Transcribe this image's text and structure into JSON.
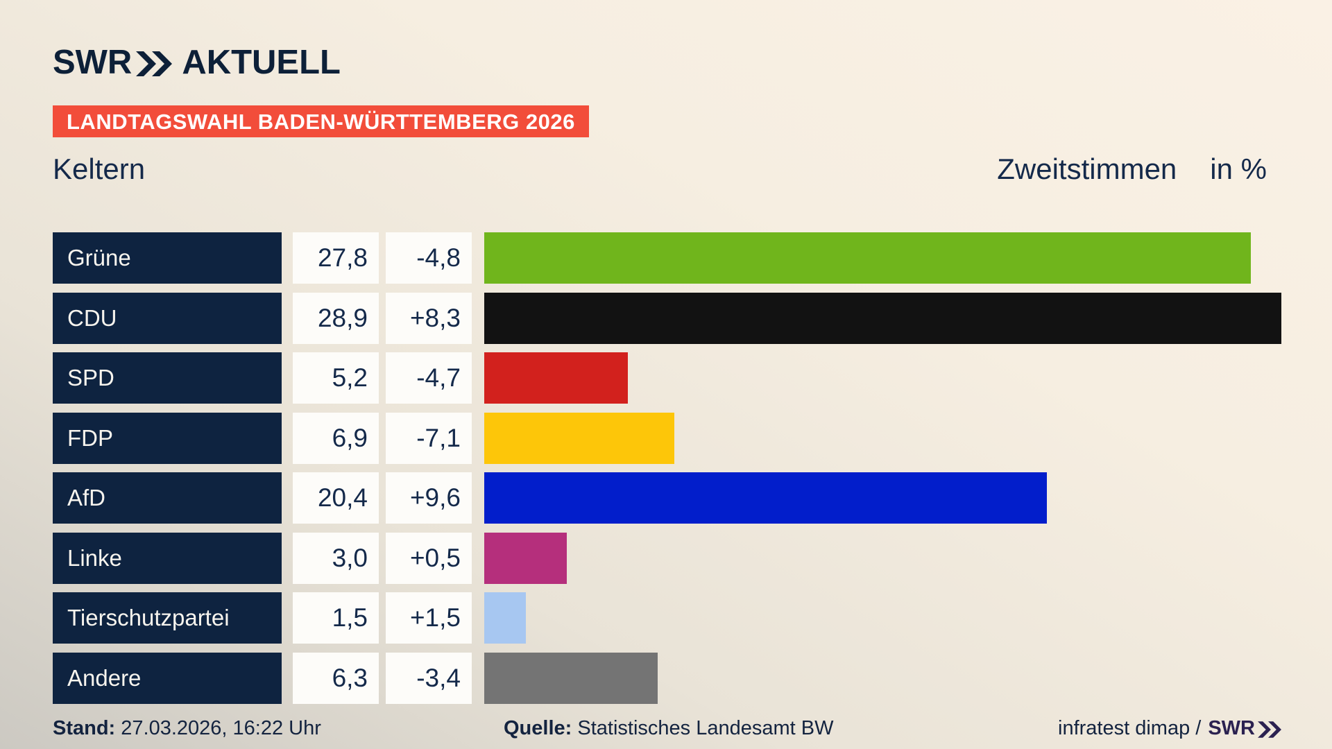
{
  "header": {
    "logo": {
      "swr": "SWR",
      "aktuell": "AKTUELL"
    },
    "banner": "LANDTAGSWAHL BADEN-WÜRTTEMBERG 2026"
  },
  "chart_data": {
    "type": "bar",
    "orientation": "horizontal",
    "title_left": "Keltern",
    "title_right": "Zweitstimmen",
    "unit": "in %",
    "value_columns": [
      "percent",
      "change_vs_previous"
    ],
    "axis_max_percent": 28.9,
    "parties": [
      {
        "name": "Grüne",
        "value": 27.8,
        "value_label": "27,8",
        "change_label": "-4,8",
        "color": "#70b51c"
      },
      {
        "name": "CDU",
        "value": 28.9,
        "value_label": "28,9",
        "change_label": "+8,3",
        "color": "#121212"
      },
      {
        "name": "SPD",
        "value": 5.2,
        "value_label": "5,2",
        "change_label": "-4,7",
        "color": "#d2211d"
      },
      {
        "name": "FDP",
        "value": 6.9,
        "value_label": "6,9",
        "change_label": "-7,1",
        "color": "#fdc609"
      },
      {
        "name": "AfD",
        "value": 20.4,
        "value_label": "20,4",
        "change_label": "+9,6",
        "color": "#021ecb"
      },
      {
        "name": "Linke",
        "value": 3.0,
        "value_label": "3,0",
        "change_label": "+0,5",
        "color": "#b52f7c"
      },
      {
        "name": "Tierschutzpartei",
        "value": 1.5,
        "value_label": "1,5",
        "change_label": "+1,5",
        "color": "#a7c7f1"
      },
      {
        "name": "Andere",
        "value": 6.3,
        "value_label": "6,3",
        "change_label": "-3,4",
        "color": "#747474"
      }
    ]
  },
  "footer": {
    "stand_label": "Stand:",
    "stand_value": "27.03.2026, 16:22 Uhr",
    "quelle_label": "Quelle:",
    "quelle_value": "Statistisches Landesamt BW",
    "credit": "infratest dimap /",
    "swr_mark": "SWR"
  },
  "icons": {
    "logo_chevron": "double-chevron-right",
    "footer_chevron": "double-chevron-right"
  },
  "colors": {
    "banner_red": "#f24d3a",
    "label_navy": "#0e2340",
    "text_navy": "#14294a",
    "logo_navy": "#0d2038",
    "footer_swr_purple": "#2b2150",
    "box_white": "#fdfcf9",
    "background_light": "#faf1e5",
    "background_dark": "#ccc9c2"
  }
}
